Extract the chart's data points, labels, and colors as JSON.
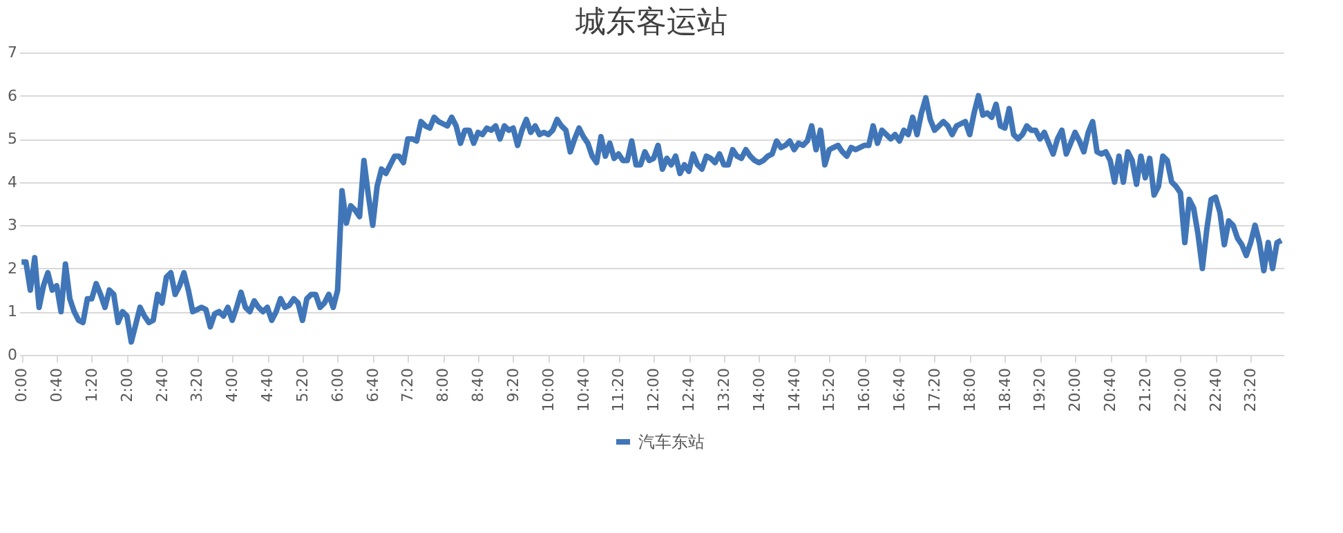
{
  "chart_data": {
    "type": "line",
    "title": "城东客运站",
    "categories": [
      "0:00",
      null,
      null,
      null,
      null,
      null,
      null,
      null,
      "0:40",
      null,
      null,
      null,
      null,
      null,
      null,
      null,
      "1:20",
      null,
      null,
      null,
      null,
      null,
      null,
      null,
      "2:00",
      null,
      null,
      null,
      null,
      null,
      null,
      null,
      "2:40",
      null,
      null,
      null,
      null,
      null,
      null,
      null,
      "3:20",
      null,
      null,
      null,
      null,
      null,
      null,
      null,
      "4:00",
      null,
      null,
      null,
      null,
      null,
      null,
      null,
      "4:40",
      null,
      null,
      null,
      null,
      null,
      null,
      null,
      "5:20",
      null,
      null,
      null,
      null,
      null,
      null,
      null,
      "6:00",
      null,
      null,
      null,
      null,
      null,
      null,
      null,
      "6:40",
      null,
      null,
      null,
      null,
      null,
      null,
      null,
      "7:20",
      null,
      null,
      null,
      null,
      null,
      null,
      null,
      "8:00",
      null,
      null,
      null,
      null,
      null,
      null,
      null,
      "8:40",
      null,
      null,
      null,
      null,
      null,
      null,
      null,
      "9:20",
      null,
      null,
      null,
      null,
      null,
      null,
      null,
      "10:00",
      null,
      null,
      null,
      null,
      null,
      null,
      null,
      "10:40",
      null,
      null,
      null,
      null,
      null,
      null,
      null,
      "11:20",
      null,
      null,
      null,
      null,
      null,
      null,
      null,
      "12:00",
      null,
      null,
      null,
      null,
      null,
      null,
      null,
      "12:40",
      null,
      null,
      null,
      null,
      null,
      null,
      null,
      "13:20",
      null,
      null,
      null,
      null,
      null,
      null,
      null,
      "14:00",
      null,
      null,
      null,
      null,
      null,
      null,
      null,
      "14:40",
      null,
      null,
      null,
      null,
      null,
      null,
      null,
      "15:20",
      null,
      null,
      null,
      null,
      null,
      null,
      null,
      "16:00",
      null,
      null,
      null,
      null,
      null,
      null,
      null,
      "16:40",
      null,
      null,
      null,
      null,
      null,
      null,
      null,
      "17:20",
      null,
      null,
      null,
      null,
      null,
      null,
      null,
      "18:00",
      null,
      null,
      null,
      null,
      null,
      null,
      null,
      "18:40",
      null,
      null,
      null,
      null,
      null,
      null,
      null,
      "19:20",
      null,
      null,
      null,
      null,
      null,
      null,
      null,
      "20:00",
      null,
      null,
      null,
      null,
      null,
      null,
      null,
      "20:40",
      null,
      null,
      null,
      null,
      null,
      null,
      null,
      "21:20",
      null,
      null,
      null,
      null,
      null,
      null,
      null,
      "22:00",
      null,
      null,
      null,
      null,
      null,
      null,
      null,
      "22:40",
      null,
      null,
      null,
      null,
      null,
      null,
      null,
      "23:20",
      null,
      null,
      null,
      null,
      null,
      null,
      null
    ],
    "series": [
      {
        "name": "汽车东站",
        "color": "#4076b8",
        "values": [
          2.15,
          2.15,
          1.5,
          2.25,
          1.1,
          1.6,
          1.9,
          1.5,
          1.6,
          1.0,
          2.1,
          1.3,
          1.0,
          0.8,
          0.75,
          1.3,
          1.3,
          1.65,
          1.4,
          1.1,
          1.5,
          1.4,
          0.75,
          1.0,
          0.9,
          0.3,
          0.7,
          1.1,
          0.9,
          0.75,
          0.8,
          1.4,
          1.2,
          1.8,
          1.9,
          1.4,
          1.6,
          1.9,
          1.5,
          1.0,
          1.05,
          1.1,
          1.05,
          0.65,
          0.95,
          1.0,
          0.9,
          1.1,
          0.8,
          1.1,
          1.45,
          1.1,
          1.0,
          1.25,
          1.1,
          1.0,
          1.1,
          0.8,
          1.0,
          1.3,
          1.1,
          1.15,
          1.3,
          1.2,
          0.8,
          1.3,
          1.4,
          1.4,
          1.1,
          1.2,
          1.4,
          1.1,
          1.5,
          3.8,
          3.05,
          3.45,
          3.35,
          3.2,
          4.5,
          3.7,
          3.0,
          3.9,
          4.3,
          4.2,
          4.4,
          4.6,
          4.6,
          4.45,
          5.0,
          5.0,
          4.95,
          5.4,
          5.3,
          5.25,
          5.5,
          5.4,
          5.35,
          5.3,
          5.5,
          5.3,
          4.9,
          5.2,
          5.2,
          4.9,
          5.15,
          5.1,
          5.25,
          5.2,
          5.3,
          5.0,
          5.3,
          5.2,
          5.25,
          4.85,
          5.2,
          5.45,
          5.15,
          5.3,
          5.1,
          5.15,
          5.1,
          5.2,
          5.45,
          5.3,
          5.2,
          4.7,
          5.0,
          5.25,
          5.05,
          4.9,
          4.6,
          4.45,
          5.05,
          4.6,
          4.9,
          4.55,
          4.65,
          4.5,
          4.5,
          4.95,
          4.4,
          4.4,
          4.7,
          4.5,
          4.55,
          4.85,
          4.3,
          4.55,
          4.4,
          4.6,
          4.2,
          4.4,
          4.25,
          4.65,
          4.4,
          4.3,
          4.6,
          4.55,
          4.45,
          4.65,
          4.4,
          4.4,
          4.75,
          4.6,
          4.55,
          4.75,
          4.6,
          4.5,
          4.45,
          4.5,
          4.6,
          4.65,
          4.95,
          4.8,
          4.85,
          4.95,
          4.75,
          4.9,
          4.85,
          4.95,
          5.3,
          4.75,
          5.2,
          4.4,
          4.75,
          4.8,
          4.85,
          4.7,
          4.6,
          4.8,
          4.75,
          4.8,
          4.85,
          4.85,
          5.3,
          4.9,
          5.2,
          5.1,
          5.0,
          5.1,
          4.95,
          5.2,
          5.1,
          5.5,
          5.1,
          5.6,
          5.95,
          5.45,
          5.2,
          5.3,
          5.4,
          5.3,
          5.1,
          5.3,
          5.35,
          5.4,
          5.1,
          5.6,
          6.0,
          5.55,
          5.6,
          5.5,
          5.8,
          5.3,
          5.25,
          5.7,
          5.1,
          5.0,
          5.1,
          5.3,
          5.2,
          5.2,
          5.0,
          5.15,
          4.9,
          4.65,
          5.0,
          5.2,
          4.65,
          4.9,
          5.15,
          4.95,
          4.7,
          5.15,
          5.4,
          4.7,
          4.65,
          4.7,
          4.5,
          4.0,
          4.6,
          4.0,
          4.7,
          4.5,
          3.95,
          4.6,
          4.1,
          4.55,
          3.7,
          3.9,
          4.6,
          4.5,
          4.0,
          3.9,
          3.75,
          2.6,
          3.6,
          3.4,
          2.8,
          2.0,
          2.9,
          3.6,
          3.65,
          3.3,
          2.55,
          3.1,
          3.0,
          2.7,
          2.55,
          2.3,
          2.6,
          3.0,
          2.6,
          1.95,
          2.6,
          2.0,
          2.6,
          2.65
        ]
      }
    ],
    "ylim": [
      0,
      7
    ],
    "yticks": [
      0,
      1,
      2,
      3,
      4,
      5,
      6,
      7
    ],
    "grid": "y",
    "legend": "bottom",
    "marker": "none",
    "line_style": "solid"
  }
}
